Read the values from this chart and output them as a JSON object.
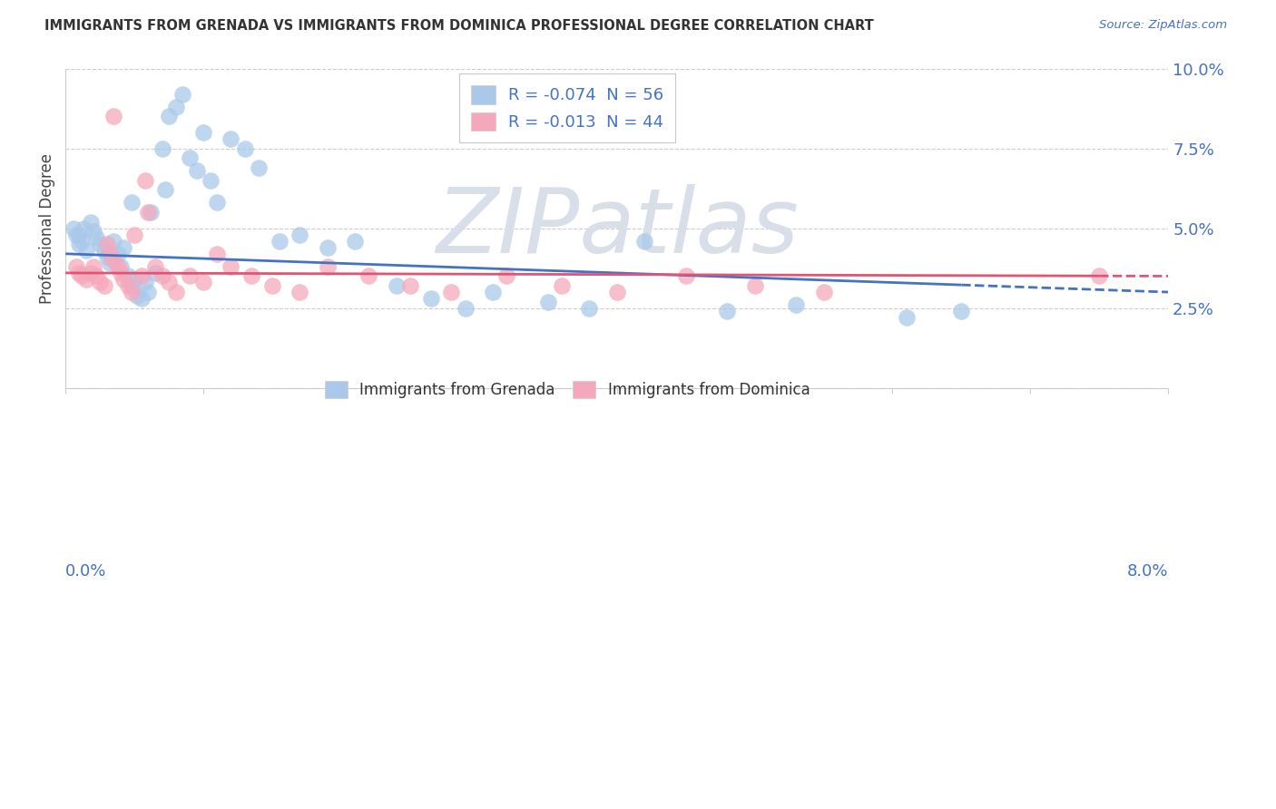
{
  "title": "IMMIGRANTS FROM GRENADA VS IMMIGRANTS FROM DOMINICA PROFESSIONAL DEGREE CORRELATION CHART",
  "source": "Source: ZipAtlas.com",
  "ylabel": "Professional Degree",
  "xmin": 0.0,
  "xmax": 8.0,
  "ymin": 0.0,
  "ymax": 10.0,
  "grenada_R": -0.074,
  "grenada_N": 56,
  "dominica_R": -0.013,
  "dominica_N": 44,
  "grenada_color": "#aac9ea",
  "dominica_color": "#f5a8bb",
  "grenada_line_color": "#4472c4",
  "dominica_line_color": "#e05575",
  "label_color": "#4472c4",
  "grid_color": "#cccccc",
  "title_color": "#333333",
  "watermark_color": "#d8dfe8",
  "bg_color": "#ffffff",
  "grenada_x": [
    0.06,
    0.08,
    0.1,
    0.1,
    0.12,
    0.15,
    0.18,
    0.2,
    0.22,
    0.25,
    0.28,
    0.3,
    0.32,
    0.35,
    0.38,
    0.4,
    0.42,
    0.45,
    0.48,
    0.5,
    0.52,
    0.55,
    0.58,
    0.6,
    0.62,
    0.65,
    0.7,
    0.75,
    0.8,
    0.85,
    0.9,
    0.95,
    1.0,
    1.05,
    1.1,
    1.2,
    1.3,
    1.4,
    1.55,
    1.7,
    1.9,
    2.1,
    2.4,
    2.65,
    2.9,
    3.1,
    3.5,
    3.8,
    4.2,
    4.8,
    5.3,
    6.1,
    6.5,
    0.13,
    0.48,
    0.72
  ],
  "grenada_y": [
    5.0,
    4.8,
    4.5,
    4.8,
    4.6,
    4.3,
    5.2,
    4.9,
    4.7,
    4.5,
    4.3,
    4.1,
    3.9,
    4.6,
    4.2,
    3.8,
    4.4,
    3.5,
    3.2,
    3.4,
    2.9,
    2.8,
    3.3,
    3.0,
    5.5,
    3.6,
    7.5,
    8.5,
    8.8,
    9.2,
    7.2,
    6.8,
    8.0,
    6.5,
    5.8,
    7.8,
    7.5,
    6.9,
    4.6,
    4.8,
    4.4,
    4.6,
    3.2,
    2.8,
    2.5,
    3.0,
    2.7,
    2.5,
    4.6,
    2.4,
    2.6,
    2.2,
    2.4,
    5.0,
    5.8,
    6.2
  ],
  "dominica_x": [
    0.08,
    0.1,
    0.12,
    0.15,
    0.18,
    0.2,
    0.22,
    0.25,
    0.28,
    0.3,
    0.32,
    0.35,
    0.38,
    0.4,
    0.42,
    0.45,
    0.48,
    0.5,
    0.55,
    0.6,
    0.65,
    0.7,
    0.75,
    0.8,
    0.9,
    1.0,
    1.1,
    1.2,
    1.35,
    1.5,
    1.7,
    1.9,
    2.2,
    2.5,
    2.8,
    3.2,
    3.6,
    4.0,
    4.5,
    5.0,
    5.5,
    7.5,
    0.35,
    0.58
  ],
  "dominica_y": [
    3.8,
    3.6,
    3.5,
    3.4,
    3.6,
    3.8,
    3.5,
    3.3,
    3.2,
    4.5,
    4.2,
    4.0,
    3.8,
    3.6,
    3.4,
    3.2,
    3.0,
    4.8,
    3.5,
    5.5,
    3.8,
    3.5,
    3.3,
    3.0,
    3.5,
    3.3,
    4.2,
    3.8,
    3.5,
    3.2,
    3.0,
    3.8,
    3.5,
    3.2,
    3.0,
    3.5,
    3.2,
    3.0,
    3.5,
    3.2,
    3.0,
    3.5,
    8.5,
    6.5
  ],
  "grenada_line_start_x": 0.0,
  "grenada_line_end_x": 8.0,
  "grenada_line_start_y": 4.2,
  "grenada_line_end_y": 3.0,
  "grenada_solid_end_x": 6.5,
  "dominica_line_start_x": 0.0,
  "dominica_line_end_x": 8.0,
  "dominica_line_start_y": 3.6,
  "dominica_line_end_y": 3.5,
  "dominica_solid_end_x": 7.5
}
